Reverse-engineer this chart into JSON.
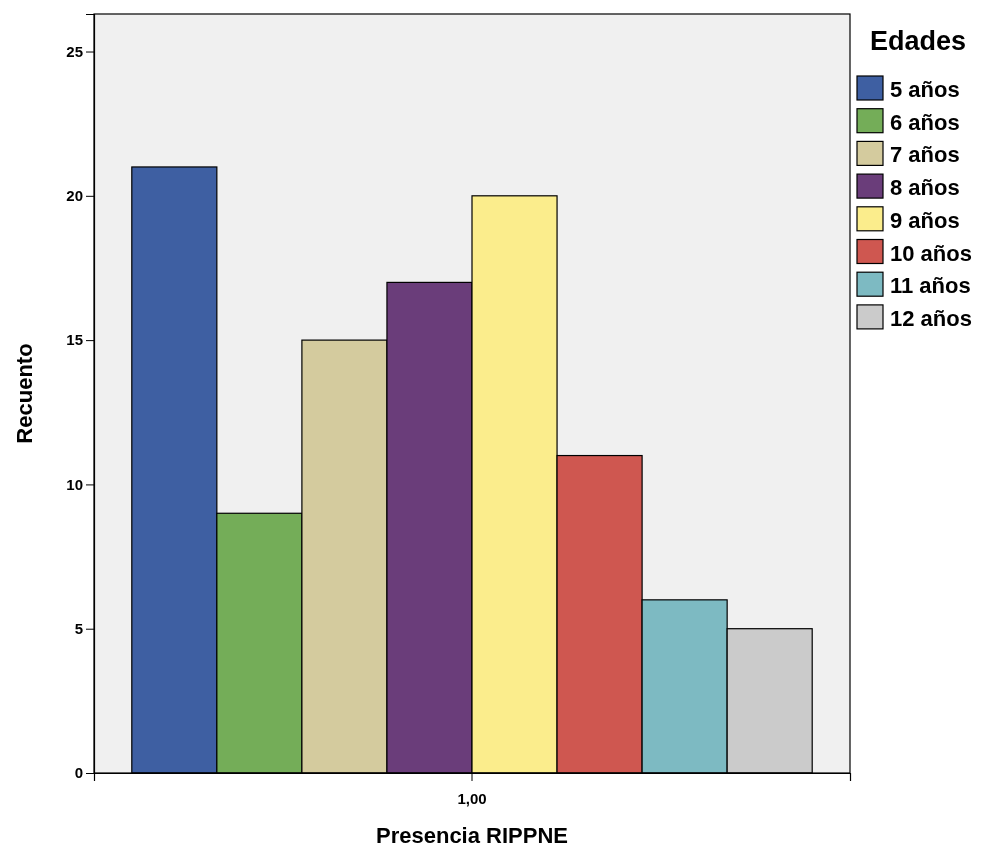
{
  "chart_data": {
    "type": "bar",
    "xlabel": "Presencia RIPPNE",
    "ylabel": "Recuento",
    "legend_title": "Edades",
    "categories": [
      "1,00"
    ],
    "series": [
      {
        "name": "5 años",
        "color": "#3e5fa2",
        "values": [
          21
        ]
      },
      {
        "name": "6 años",
        "color": "#74ad58",
        "values": [
          9
        ]
      },
      {
        "name": "7 años",
        "color": "#d4cb9e",
        "values": [
          15
        ]
      },
      {
        "name": "8 años",
        "color": "#6a3d7a",
        "values": [
          17
        ]
      },
      {
        "name": "9 años",
        "color": "#fbed8c",
        "values": [
          20
        ]
      },
      {
        "name": "10 años",
        "color": "#cf5750",
        "values": [
          11
        ]
      },
      {
        "name": "11 años",
        "color": "#7dbac2",
        "values": [
          6
        ]
      },
      {
        "name": "12 años",
        "color": "#cbcbcb",
        "values": [
          5
        ]
      }
    ],
    "ylim": [
      0,
      26.3
    ],
    "yticks": [
      0,
      5,
      10,
      15,
      20,
      25
    ],
    "grid": false,
    "legend": "top right"
  }
}
